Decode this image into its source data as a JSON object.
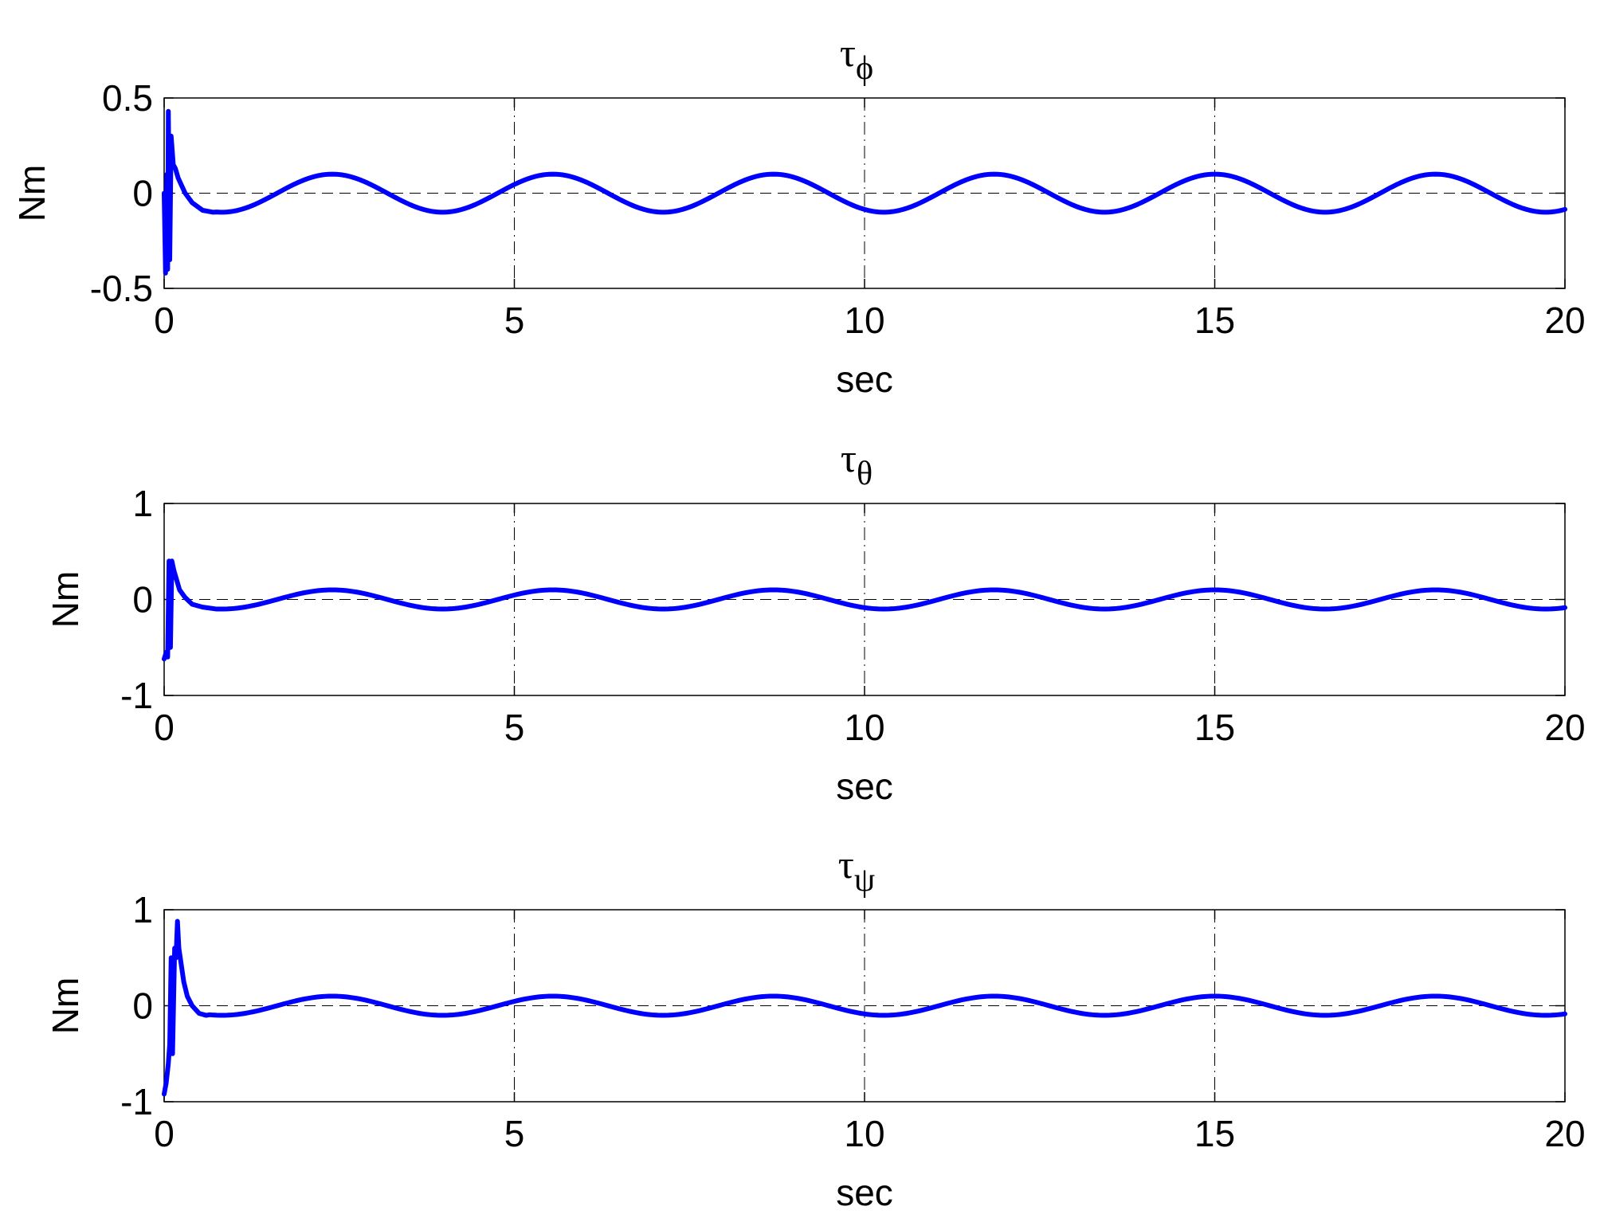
{
  "chart_data": [
    {
      "type": "line",
      "title": "τ",
      "title_subscript": "ϕ",
      "xlabel": "sec",
      "ylabel": "Nm",
      "xlim": [
        0,
        20
      ],
      "ylim": [
        -0.5,
        0.5
      ],
      "xticks": [
        "0",
        "5",
        "10",
        "15",
        "20"
      ],
      "yticks": [
        "-0.5",
        "0",
        "0.5"
      ],
      "ytick_values": [
        -0.5,
        0,
        0.5
      ],
      "grid": "vertical dashed lines at x ticks, dashed horizontal line at y = 0",
      "line_color": "#0000ff",
      "transient": [
        [
          0.0,
          0.0
        ],
        [
          0.02,
          -0.42
        ],
        [
          0.04,
          0.1
        ],
        [
          0.05,
          -0.4
        ],
        [
          0.06,
          0.43
        ],
        [
          0.08,
          -0.35
        ],
        [
          0.1,
          0.3
        ],
        [
          0.13,
          0.15
        ],
        [
          0.16,
          0.13
        ],
        [
          0.2,
          0.08
        ],
        [
          0.25,
          0.04
        ],
        [
          0.3,
          0.0
        ],
        [
          0.4,
          -0.05
        ],
        [
          0.55,
          -0.09
        ],
        [
          0.7,
          -0.1
        ]
      ],
      "oscillation": {
        "amplitude": 0.1,
        "period": 3.15,
        "phase_ref_peak": 2.4,
        "until": 20
      }
    },
    {
      "type": "line",
      "title": "τ",
      "title_subscript": "θ",
      "xlabel": "sec",
      "ylabel": "Nm",
      "xlim": [
        0,
        20
      ],
      "ylim": [
        -1,
        1
      ],
      "xticks": [
        "0",
        "5",
        "10",
        "15",
        "20"
      ],
      "yticks": [
        "-1",
        "0",
        "1"
      ],
      "ytick_values": [
        -1,
        0,
        1
      ],
      "grid": "vertical dashed lines at x ticks, dashed horizontal line at y = 0",
      "line_color": "#0000ff",
      "transient": [
        [
          0.0,
          -0.62
        ],
        [
          0.03,
          -0.55
        ],
        [
          0.05,
          -0.6
        ],
        [
          0.07,
          0.4
        ],
        [
          0.09,
          -0.5
        ],
        [
          0.11,
          0.4
        ],
        [
          0.14,
          0.3
        ],
        [
          0.18,
          0.2
        ],
        [
          0.22,
          0.1
        ],
        [
          0.3,
          0.02
        ],
        [
          0.4,
          -0.05
        ],
        [
          0.55,
          -0.08
        ],
        [
          0.75,
          -0.1
        ]
      ],
      "oscillation": {
        "amplitude": 0.1,
        "period": 3.15,
        "phase_ref_peak": 2.4,
        "until": 20
      }
    },
    {
      "type": "line",
      "title": "τ",
      "title_subscript": "ψ",
      "xlabel": "sec",
      "ylabel": "Nm",
      "xlim": [
        0,
        20
      ],
      "ylim": [
        -1,
        1
      ],
      "xticks": [
        "0",
        "5",
        "10",
        "15",
        "20"
      ],
      "yticks": [
        "-1",
        "0",
        "1"
      ],
      "ytick_values": [
        -1,
        0,
        1
      ],
      "grid": "vertical dashed lines at x ticks, dashed horizontal line at y = 0",
      "line_color": "#0000ff",
      "transient": [
        [
          0.0,
          -0.92
        ],
        [
          0.03,
          -0.8
        ],
        [
          0.06,
          -0.6
        ],
        [
          0.08,
          -0.4
        ],
        [
          0.1,
          0.5
        ],
        [
          0.12,
          -0.5
        ],
        [
          0.15,
          0.6
        ],
        [
          0.17,
          0.5
        ],
        [
          0.19,
          0.88
        ],
        [
          0.21,
          0.6
        ],
        [
          0.24,
          0.45
        ],
        [
          0.28,
          0.25
        ],
        [
          0.33,
          0.1
        ],
        [
          0.4,
          0.0
        ],
        [
          0.5,
          -0.08
        ],
        [
          0.6,
          -0.1
        ]
      ],
      "oscillation": {
        "amplitude": 0.1,
        "period": 3.15,
        "phase_ref_peak": 2.4,
        "until": 20
      }
    }
  ]
}
